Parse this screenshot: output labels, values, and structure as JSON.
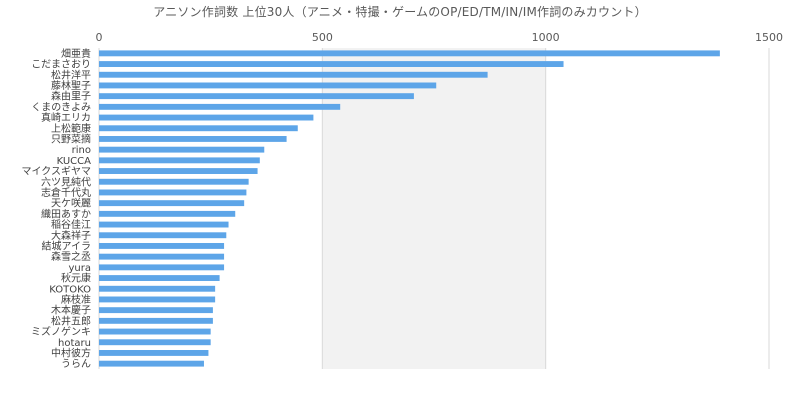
{
  "chart_data": {
    "type": "bar",
    "orientation": "horizontal",
    "title": "アニソン作詞数 上位30人（アニメ・特撮・ゲームのOP/ED/TM/IN/IM作詞のみカウント）",
    "xlabel": "",
    "ylabel": "",
    "xlim": [
      0,
      1500
    ],
    "x_ticks": [
      0,
      500,
      1000,
      1500
    ],
    "x_axis_position": "top",
    "grid": true,
    "legend": "none",
    "colors": {
      "bar": "#5da5e8",
      "plot_band": "#f2f2f2",
      "grid": "#d9d9d9",
      "text": "#595959"
    },
    "categories": [
      "畑亜貴",
      "こだまさおり",
      "松井洋平",
      "藤林聖子",
      "森由里子",
      "くまのきよみ",
      "真崎エリカ",
      "上松範康",
      "只野菜摘",
      "rino",
      "KUCCA",
      "マイクスギヤマ",
      "六ツ見純代",
      "志倉千代丸",
      "天ケ咲麗",
      "織田あすか",
      "稲谷佳江",
      "大森祥子",
      "結城アイラ",
      "森雪之丞",
      "yura",
      "秋元康",
      "KOTOKO",
      "麻枝准",
      "木本慶子",
      "松井五郎",
      "ミズノゲンキ",
      "hotaru",
      "中村彼方",
      "うらん"
    ],
    "values": [
      1390,
      1040,
      870,
      755,
      705,
      540,
      480,
      445,
      420,
      370,
      360,
      355,
      335,
      330,
      325,
      305,
      290,
      285,
      280,
      280,
      280,
      270,
      260,
      260,
      255,
      255,
      250,
      250,
      245,
      235
    ]
  }
}
